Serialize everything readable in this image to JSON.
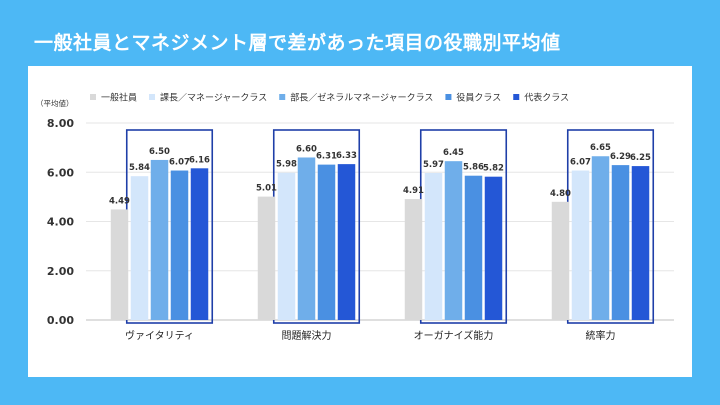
{
  "title": "一般社員とマネジメント層で差があった項目の役職別平均値",
  "chart_data": {
    "type": "bar",
    "ylabel": "（平均値）",
    "ylim": [
      0,
      8
    ],
    "yticks": [
      "0.00",
      "2.00",
      "4.00",
      "6.00",
      "8.00"
    ],
    "categories": [
      "ヴァイタリティ",
      "問題解決力",
      "オーガナイズ能力",
      "統率力"
    ],
    "legend_position": "top",
    "series": [
      {
        "name": "一般社員",
        "color": "#d9d9d9",
        "values": [
          4.49,
          5.01,
          4.91,
          4.8
        ],
        "labels": [
          "4.49",
          "5.01",
          "4.91",
          "4.80"
        ]
      },
      {
        "name": "課長／マネージャークラス",
        "color": "#d3e6fb",
        "values": [
          5.84,
          5.98,
          5.97,
          6.07
        ],
        "labels": [
          "5.84",
          "5.98",
          "5.97",
          "6.07"
        ]
      },
      {
        "name": "部長／ゼネラルマネージャークラス",
        "color": "#6faeea",
        "values": [
          6.5,
          6.6,
          6.45,
          6.65
        ],
        "labels": [
          "6.50",
          "6.60",
          "6.45",
          "6.65"
        ]
      },
      {
        "name": "役員クラス",
        "color": "#4a90e2",
        "values": [
          6.07,
          6.31,
          5.86,
          6.29
        ],
        "labels": [
          "6.07",
          "6.31",
          "5.86",
          "6.29"
        ]
      },
      {
        "name": "代表クラス",
        "color": "#2457d6",
        "values": [
          6.16,
          6.33,
          5.82,
          6.25
        ],
        "labels": [
          "6.16",
          "6.33",
          "5.82",
          "6.25"
        ]
      }
    ],
    "highlight_color": "#1f3fa8"
  }
}
